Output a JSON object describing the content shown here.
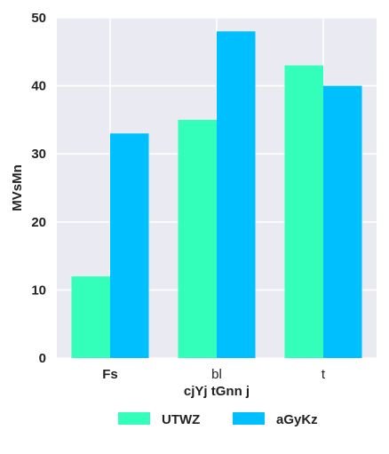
{
  "chart_data": {
    "type": "bar",
    "categories": [
      "Fs",
      "bl",
      "t"
    ],
    "series": [
      {
        "name": "UTWZ",
        "values": [
          12,
          35,
          43
        ],
        "color": "#33ffbb"
      },
      {
        "name": "aGyKz",
        "values": [
          33,
          48,
          40
        ],
        "color": "#00bfff"
      }
    ],
    "xlabel": "cjYj tGnn j",
    "ylabel": "MVsMn",
    "ylim": [
      0,
      50
    ],
    "yticks": [
      0,
      10,
      20,
      30,
      40,
      50
    ],
    "grid": true,
    "legend_position": "bottom"
  }
}
